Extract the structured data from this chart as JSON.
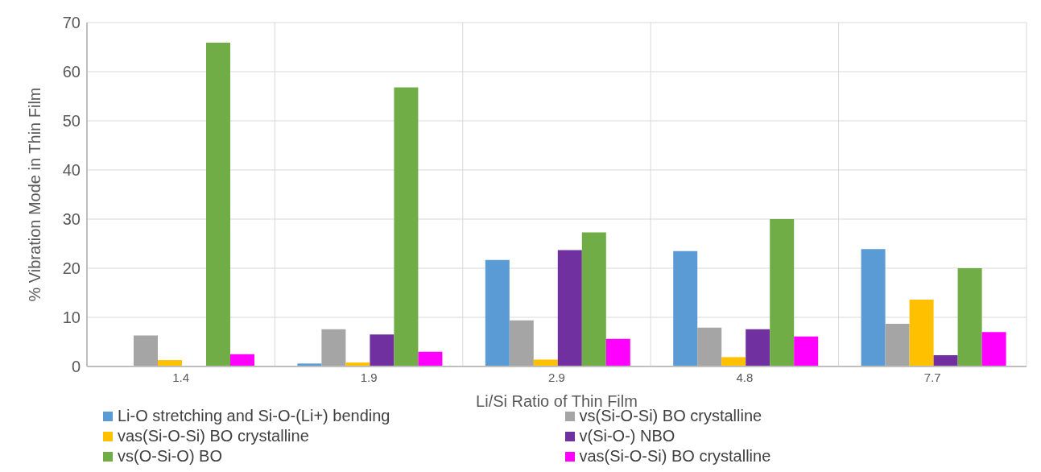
{
  "chart_data": {
    "type": "bar",
    "xlabel": "Li/Si Ratio of Thin Film",
    "ylabel": "% Vibration Mode in Thin Film",
    "categories": [
      "1.4",
      "1.9",
      "2.9",
      "4.8",
      "7.7"
    ],
    "series": [
      {
        "name": "Li-O stretching and Si-O-(Li+) bending",
        "color": "#5b9bd5",
        "values": [
          0,
          0.6,
          21.7,
          23.5,
          23.9
        ]
      },
      {
        "name": "vs(Si-O-Si) BO crystalline",
        "color": "#a5a5a5",
        "values": [
          6.3,
          7.6,
          9.4,
          7.9,
          8.7
        ]
      },
      {
        "name": "vas(Si-O-Si) BO crystalline",
        "color": "#ffc000",
        "values": [
          1.3,
          0.8,
          1.4,
          1.9,
          13.6
        ]
      },
      {
        "name": "v(Si-O-) NBO",
        "color": "#7030a0",
        "values": [
          0,
          6.5,
          23.7,
          7.6,
          2.3
        ]
      },
      {
        "name": "vs(O-Si-O) BO",
        "color": "#70ad47",
        "values": [
          65.9,
          56.8,
          27.3,
          30.0,
          20.0
        ]
      },
      {
        "name": "vas(Si-O-Si) BO crystalline",
        "color": "#ff00ff",
        "values": [
          2.5,
          3.0,
          5.6,
          6.1,
          7.0
        ]
      }
    ],
    "ylim": [
      0,
      70
    ],
    "yticks": [
      0,
      10,
      20,
      30,
      40,
      50,
      60,
      70
    ],
    "grid": true,
    "legend": "bottom"
  }
}
